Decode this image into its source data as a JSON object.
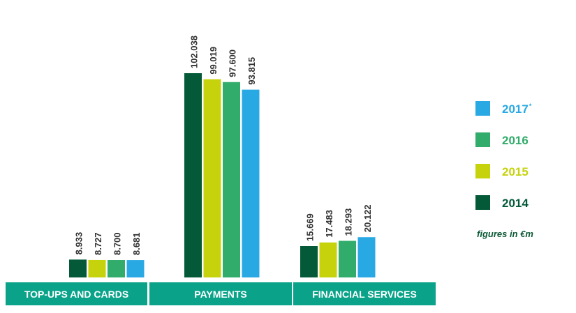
{
  "chart_data": {
    "type": "bar",
    "categories": [
      "TOP-UPS AND CARDS",
      "PAYMENTS",
      "FINANCIAL SERVICES"
    ],
    "series": [
      {
        "name": "2014",
        "values": [
          8.933,
          102.038,
          15.669
        ],
        "labels": [
          "8.933",
          "102.038",
          "15.669"
        ]
      },
      {
        "name": "2015",
        "values": [
          8.727,
          99.019,
          17.483
        ],
        "labels": [
          "8.727",
          "99.019",
          "17.483"
        ]
      },
      {
        "name": "2016",
        "values": [
          8.7,
          97.6,
          18.293
        ],
        "labels": [
          "8.700",
          "97.600",
          "18.293"
        ]
      },
      {
        "name": "2017",
        "values": [
          8.681,
          93.815,
          20.122
        ],
        "labels": [
          "8.681",
          "93.815",
          "20.122"
        ]
      }
    ],
    "ylim": [
      0,
      102.038
    ],
    "grid": false,
    "legend_placement": "right"
  },
  "colors": {
    "2014": "#045a38",
    "2015": "#c6d30c",
    "2016": "#31ac6a",
    "2017": "#29a9e3",
    "category_bar": "#0aa38a",
    "label_text": "#333333"
  },
  "legend": [
    {
      "label": "2017",
      "marker": "*",
      "color": "#29a9e3"
    },
    {
      "label": "2016",
      "marker": "",
      "color": "#31ac6a"
    },
    {
      "label": "2015",
      "marker": "",
      "color": "#c6d30c"
    },
    {
      "label": "2014",
      "marker": "",
      "color": "#045a38"
    }
  ],
  "note": "figures in €m"
}
